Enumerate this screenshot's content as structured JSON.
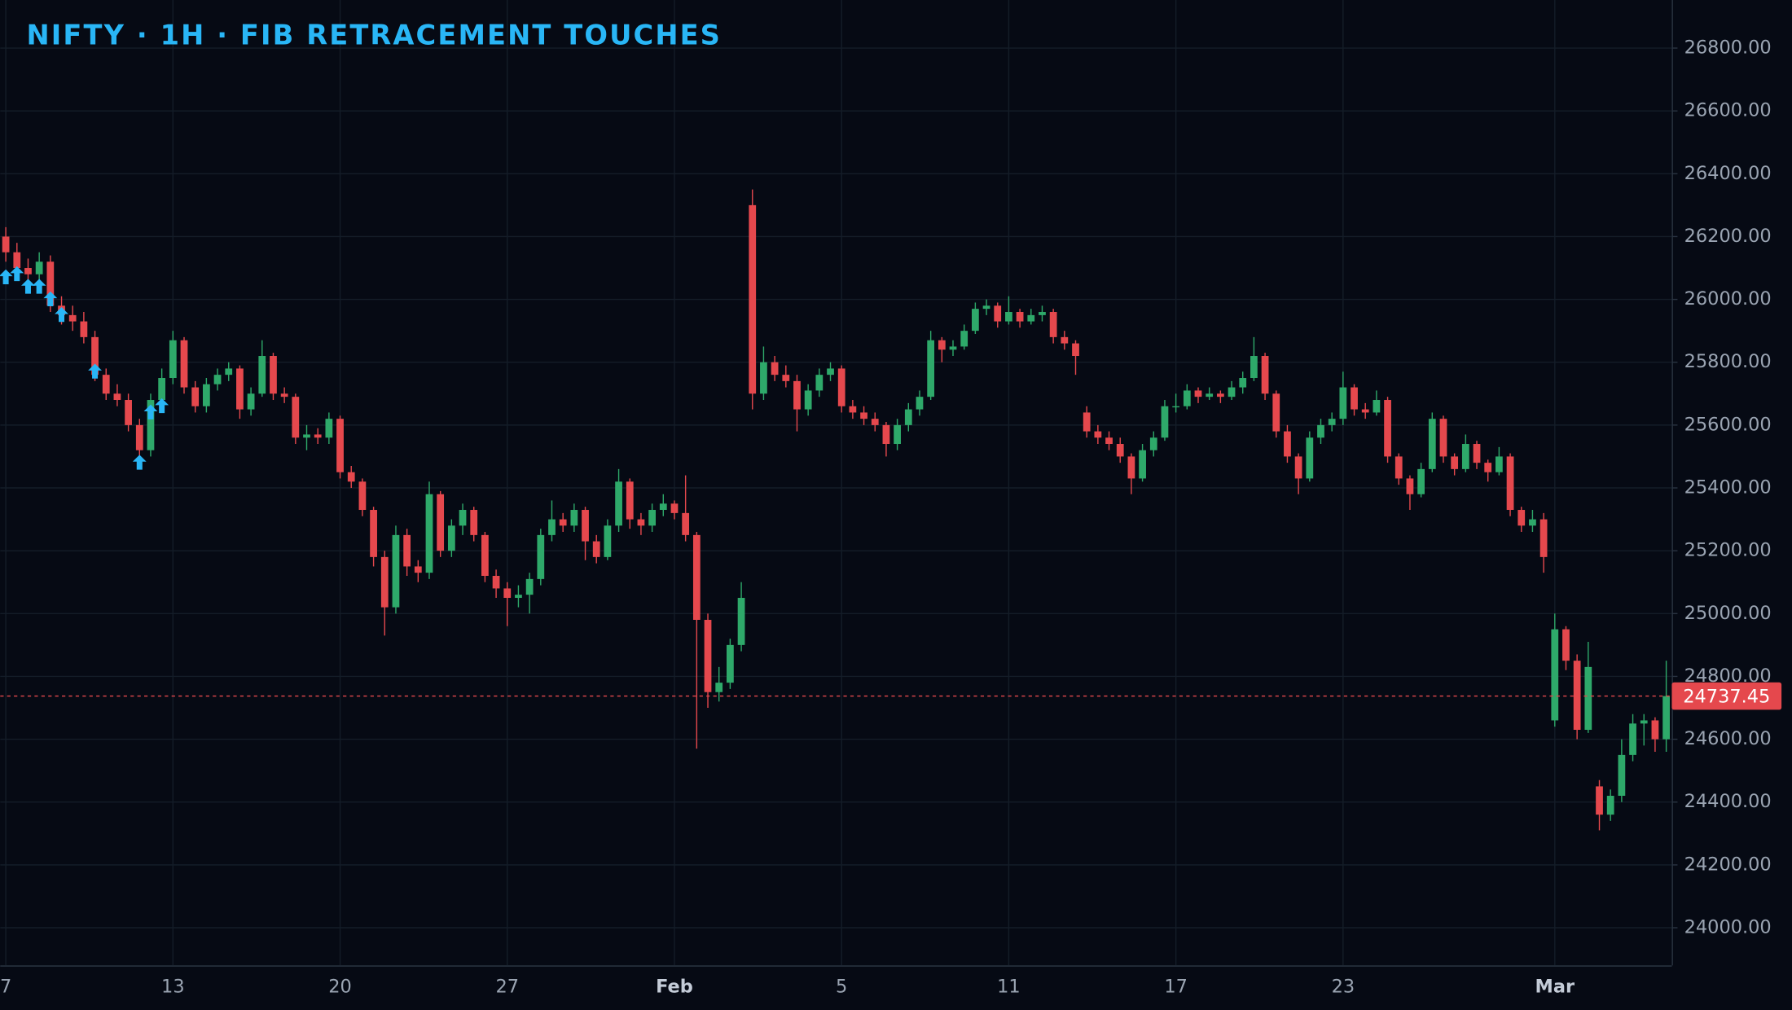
{
  "chart_data": {
    "type": "candlestick",
    "title": "NIFTY · 1H · FIB RETRACEMENT TOUCHES",
    "up_color": "#2ea96a",
    "down_color": "#e5484d",
    "marker_color": "#29b6f6",
    "grid": true,
    "categories": [
      "7",
      null,
      null,
      null,
      null,
      null,
      null,
      null,
      null,
      null,
      null,
      null,
      null,
      null,
      null,
      "13",
      null,
      null,
      null,
      null,
      null,
      null,
      null,
      null,
      null,
      null,
      null,
      null,
      null,
      null,
      "20",
      null,
      null,
      null,
      null,
      null,
      null,
      null,
      null,
      null,
      null,
      null,
      null,
      null,
      null,
      "27",
      null,
      null,
      null,
      null,
      null,
      null,
      null,
      null,
      null,
      null,
      null,
      null,
      null,
      null,
      "Feb",
      null,
      null,
      null,
      null,
      null,
      null,
      null,
      null,
      null,
      null,
      null,
      null,
      null,
      null,
      "5",
      null,
      null,
      null,
      null,
      null,
      null,
      null,
      null,
      null,
      null,
      null,
      null,
      null,
      null,
      "11",
      null,
      null,
      null,
      null,
      null,
      null,
      null,
      null,
      null,
      null,
      null,
      null,
      null,
      null,
      "17",
      null,
      null,
      null,
      null,
      null,
      null,
      null,
      null,
      null,
      null,
      null,
      null,
      null,
      null,
      "23",
      null,
      null,
      null,
      null,
      null,
      null,
      null,
      null,
      null,
      null,
      null,
      null,
      null,
      null,
      null,
      null,
      null,
      null,
      "Mar",
      null,
      null,
      null,
      null,
      null,
      null,
      null,
      null,
      null,
      null
    ],
    "candles": [
      [
        26200,
        26230,
        26120,
        26150
      ],
      [
        26150,
        26180,
        26060,
        26100
      ],
      [
        26100,
        26130,
        26040,
        26080
      ],
      [
        26080,
        26150,
        26050,
        26120
      ],
      [
        26120,
        26140,
        25960,
        25980
      ],
      [
        25980,
        26010,
        25920,
        25950
      ],
      [
        25950,
        25980,
        25900,
        25930
      ],
      [
        25930,
        25960,
        25860,
        25880
      ],
      [
        25880,
        25900,
        25740,
        25760
      ],
      [
        25760,
        25780,
        25680,
        25700
      ],
      [
        25700,
        25730,
        25660,
        25680
      ],
      [
        25680,
        25700,
        25580,
        25600
      ],
      [
        25600,
        25620,
        25490,
        25520
      ],
      [
        25520,
        25700,
        25500,
        25680
      ],
      [
        25680,
        25780,
        25660,
        25750
      ],
      [
        25750,
        25900,
        25730,
        25870
      ],
      [
        25870,
        25880,
        25700,
        25720
      ],
      [
        25720,
        25740,
        25640,
        25660
      ],
      [
        25660,
        25750,
        25640,
        25730
      ],
      [
        25730,
        25780,
        25710,
        25760
      ],
      [
        25760,
        25800,
        25740,
        25780
      ],
      [
        25780,
        25790,
        25620,
        25650
      ],
      [
        25650,
        25720,
        25630,
        25700
      ],
      [
        25700,
        25870,
        25690,
        25820
      ],
      [
        25820,
        25830,
        25680,
        25700
      ],
      [
        25700,
        25720,
        25670,
        25690
      ],
      [
        25690,
        25700,
        25540,
        25560
      ],
      [
        25560,
        25600,
        25520,
        25570
      ],
      [
        25570,
        25590,
        25540,
        25560
      ],
      [
        25560,
        25640,
        25540,
        25620
      ],
      [
        25620,
        25630,
        25430,
        25450
      ],
      [
        25450,
        25470,
        25400,
        25420
      ],
      [
        25420,
        25430,
        25310,
        25330
      ],
      [
        25330,
        25340,
        25150,
        25180
      ],
      [
        25180,
        25200,
        24930,
        25020
      ],
      [
        25020,
        25280,
        25000,
        25250
      ],
      [
        25250,
        25270,
        25120,
        25150
      ],
      [
        25150,
        25170,
        25100,
        25130
      ],
      [
        25130,
        25420,
        25110,
        25380
      ],
      [
        25380,
        25390,
        25180,
        25200
      ],
      [
        25200,
        25300,
        25180,
        25280
      ],
      [
        25280,
        25350,
        25250,
        25330
      ],
      [
        25330,
        25340,
        25230,
        25250
      ],
      [
        25250,
        25260,
        25100,
        25120
      ],
      [
        25120,
        25140,
        25050,
        25080
      ],
      [
        25080,
        25100,
        24960,
        25050
      ],
      [
        25050,
        25090,
        25020,
        25060
      ],
      [
        25060,
        25130,
        25000,
        25110
      ],
      [
        25110,
        25270,
        25090,
        25250
      ],
      [
        25250,
        25360,
        25230,
        25300
      ],
      [
        25300,
        25320,
        25260,
        25280
      ],
      [
        25280,
        25350,
        25260,
        25330
      ],
      [
        25330,
        25340,
        25170,
        25230
      ],
      [
        25230,
        25250,
        25160,
        25180
      ],
      [
        25180,
        25300,
        25170,
        25280
      ],
      [
        25280,
        25460,
        25260,
        25420
      ],
      [
        25420,
        25430,
        25270,
        25300
      ],
      [
        25300,
        25320,
        25250,
        25280
      ],
      [
        25280,
        25350,
        25260,
        25330
      ],
      [
        25330,
        25380,
        25310,
        25350
      ],
      [
        25350,
        25360,
        25300,
        25320
      ],
      [
        25320,
        25440,
        25230,
        25250
      ],
      [
        25250,
        25260,
        24570,
        24980
      ],
      [
        24980,
        25000,
        24700,
        24750
      ],
      [
        24750,
        24830,
        24720,
        24780
      ],
      [
        24780,
        24920,
        24760,
        24900
      ],
      [
        24900,
        25100,
        24880,
        25050
      ],
      [
        26300,
        26350,
        25650,
        25700
      ],
      [
        25700,
        25850,
        25680,
        25800
      ],
      [
        25800,
        25820,
        25740,
        25760
      ],
      [
        25760,
        25790,
        25720,
        25740
      ],
      [
        25740,
        25760,
        25580,
        25650
      ],
      [
        25650,
        25730,
        25630,
        25710
      ],
      [
        25710,
        25780,
        25690,
        25760
      ],
      [
        25760,
        25800,
        25740,
        25780
      ],
      [
        25780,
        25790,
        25640,
        25660
      ],
      [
        25660,
        25680,
        25620,
        25640
      ],
      [
        25640,
        25660,
        25600,
        25620
      ],
      [
        25620,
        25640,
        25580,
        25600
      ],
      [
        25600,
        25610,
        25500,
        25540
      ],
      [
        25540,
        25620,
        25520,
        25600
      ],
      [
        25600,
        25670,
        25580,
        25650
      ],
      [
        25650,
        25710,
        25630,
        25690
      ],
      [
        25690,
        25900,
        25680,
        25870
      ],
      [
        25870,
        25880,
        25800,
        25840
      ],
      [
        25840,
        25870,
        25820,
        25850
      ],
      [
        25850,
        25920,
        25840,
        25900
      ],
      [
        25900,
        25990,
        25890,
        25970
      ],
      [
        25970,
        26000,
        25950,
        25980
      ],
      [
        25980,
        25990,
        25910,
        25930
      ],
      [
        25930,
        26010,
        25920,
        25960
      ],
      [
        25960,
        25970,
        25910,
        25930
      ],
      [
        25930,
        25970,
        25920,
        25950
      ],
      [
        25950,
        25980,
        25930,
        25960
      ],
      [
        25960,
        25970,
        25860,
        25880
      ],
      [
        25880,
        25900,
        25840,
        25860
      ],
      [
        25860,
        25870,
        25760,
        25820
      ],
      [
        25640,
        25660,
        25560,
        25580
      ],
      [
        25580,
        25600,
        25540,
        25560
      ],
      [
        25560,
        25580,
        25520,
        25540
      ],
      [
        25540,
        25560,
        25480,
        25500
      ],
      [
        25500,
        25510,
        25380,
        25430
      ],
      [
        25430,
        25540,
        25420,
        25520
      ],
      [
        25520,
        25580,
        25500,
        25560
      ],
      [
        25560,
        25680,
        25550,
        25660
      ],
      [
        25660,
        25700,
        25640,
        25660
      ],
      [
        25660,
        25730,
        25650,
        25710
      ],
      [
        25710,
        25720,
        25670,
        25690
      ],
      [
        25690,
        25720,
        25680,
        25700
      ],
      [
        25700,
        25710,
        25670,
        25690
      ],
      [
        25690,
        25740,
        25680,
        25720
      ],
      [
        25720,
        25770,
        25700,
        25750
      ],
      [
        25750,
        25880,
        25740,
        25820
      ],
      [
        25820,
        25830,
        25680,
        25700
      ],
      [
        25700,
        25710,
        25560,
        25580
      ],
      [
        25580,
        25600,
        25480,
        25500
      ],
      [
        25500,
        25510,
        25380,
        25430
      ],
      [
        25430,
        25580,
        25420,
        25560
      ],
      [
        25560,
        25620,
        25540,
        25600
      ],
      [
        25600,
        25640,
        25580,
        25620
      ],
      [
        25620,
        25770,
        25600,
        25720
      ],
      [
        25720,
        25730,
        25630,
        25650
      ],
      [
        25650,
        25670,
        25620,
        25640
      ],
      [
        25640,
        25710,
        25630,
        25680
      ],
      [
        25680,
        25690,
        25480,
        25500
      ],
      [
        25500,
        25510,
        25410,
        25430
      ],
      [
        25430,
        25440,
        25330,
        25380
      ],
      [
        25380,
        25480,
        25370,
        25460
      ],
      [
        25460,
        25640,
        25450,
        25620
      ],
      [
        25620,
        25630,
        25480,
        25500
      ],
      [
        25500,
        25510,
        25440,
        25460
      ],
      [
        25460,
        25570,
        25450,
        25540
      ],
      [
        25540,
        25550,
        25460,
        25480
      ],
      [
        25480,
        25490,
        25420,
        25450
      ],
      [
        25450,
        25530,
        25440,
        25500
      ],
      [
        25500,
        25510,
        25310,
        25330
      ],
      [
        25330,
        25340,
        25260,
        25280
      ],
      [
        25280,
        25330,
        25260,
        25300
      ],
      [
        25300,
        25320,
        25130,
        25180
      ],
      [
        24660,
        25000,
        24640,
        24950
      ],
      [
        24950,
        24960,
        24820,
        24850
      ],
      [
        24850,
        24870,
        24600,
        24630
      ],
      [
        24630,
        24910,
        24620,
        24830
      ],
      [
        24450,
        24470,
        24310,
        24360
      ],
      [
        24360,
        24440,
        24340,
        24420
      ],
      [
        24420,
        24600,
        24400,
        24550
      ],
      [
        24550,
        24680,
        24530,
        24650
      ],
      [
        24650,
        24680,
        24580,
        24660
      ],
      [
        24660,
        24670,
        24560,
        24600
      ],
      [
        24600,
        24850,
        24560,
        24737.45
      ]
    ],
    "fib_touches": [
      {
        "index": 0,
        "price": 26070
      },
      {
        "index": 1,
        "price": 26080
      },
      {
        "index": 2,
        "price": 26040
      },
      {
        "index": 3,
        "price": 26040
      },
      {
        "index": 4,
        "price": 26000
      },
      {
        "index": 5,
        "price": 25950
      },
      {
        "index": 8,
        "price": 25770
      },
      {
        "index": 12,
        "price": 25480
      },
      {
        "index": 13,
        "price": 25640
      },
      {
        "index": 14,
        "price": 25660
      }
    ],
    "last_price": 24737.45,
    "ylim": [
      23880,
      26953
    ],
    "yticks": [
      {
        "value": 24000,
        "label": "24000.00"
      },
      {
        "value": 24200,
        "label": "24200.00"
      },
      {
        "value": 24400,
        "label": "24400.00"
      },
      {
        "value": 24600,
        "label": "24600.00"
      },
      {
        "value": 24800,
        "label": "24800.00"
      },
      {
        "value": 25000,
        "label": "25000.00"
      },
      {
        "value": 25200,
        "label": "25200.00"
      },
      {
        "value": 25400,
        "label": "25400.00"
      },
      {
        "value": 25600,
        "label": "25600.00"
      },
      {
        "value": 25800,
        "label": "25800.00"
      },
      {
        "value": 26000,
        "label": "26000.00"
      },
      {
        "value": 26200,
        "label": "26200.00"
      },
      {
        "value": 26400,
        "label": "26400.00"
      },
      {
        "value": 26600,
        "label": "26600.00"
      },
      {
        "value": 26800,
        "label": "26800.00"
      }
    ]
  }
}
